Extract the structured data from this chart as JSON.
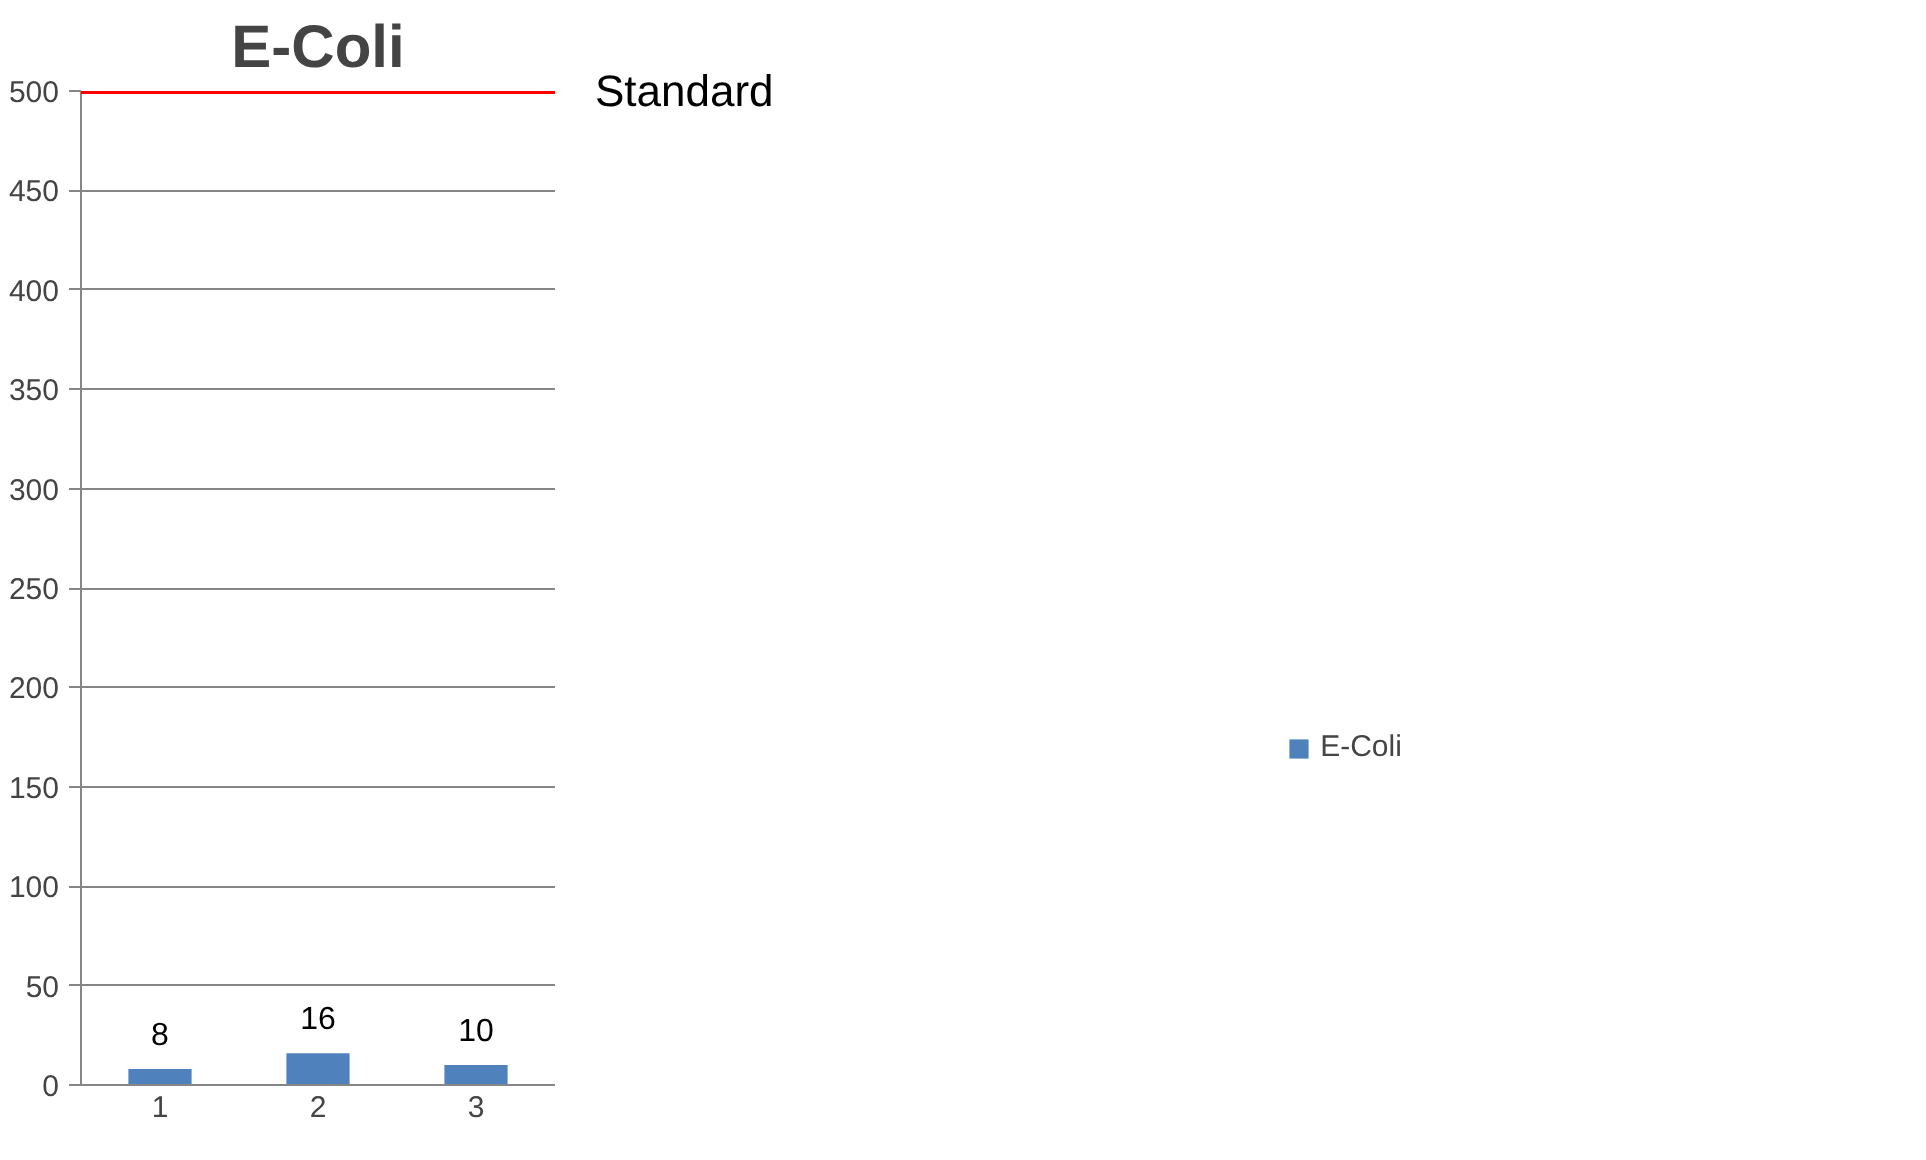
{
  "chart_data": {
    "type": "bar",
    "title": "E-Coli",
    "categories": [
      "1",
      "2",
      "3"
    ],
    "series": [
      {
        "name": "E-Coli",
        "color": "#4f81bd",
        "values": [
          8,
          16,
          10
        ]
      }
    ],
    "ylim": [
      0,
      500
    ],
    "yticks": [
      0,
      50,
      100,
      150,
      200,
      250,
      300,
      350,
      400,
      450,
      500
    ],
    "grid": "y",
    "legend": "right",
    "data_labels": true,
    "ref_lines": [
      {
        "axis": "y",
        "value": 500,
        "label": "Standard",
        "color": "#ff0000",
        "line_style": "solid"
      }
    ]
  }
}
